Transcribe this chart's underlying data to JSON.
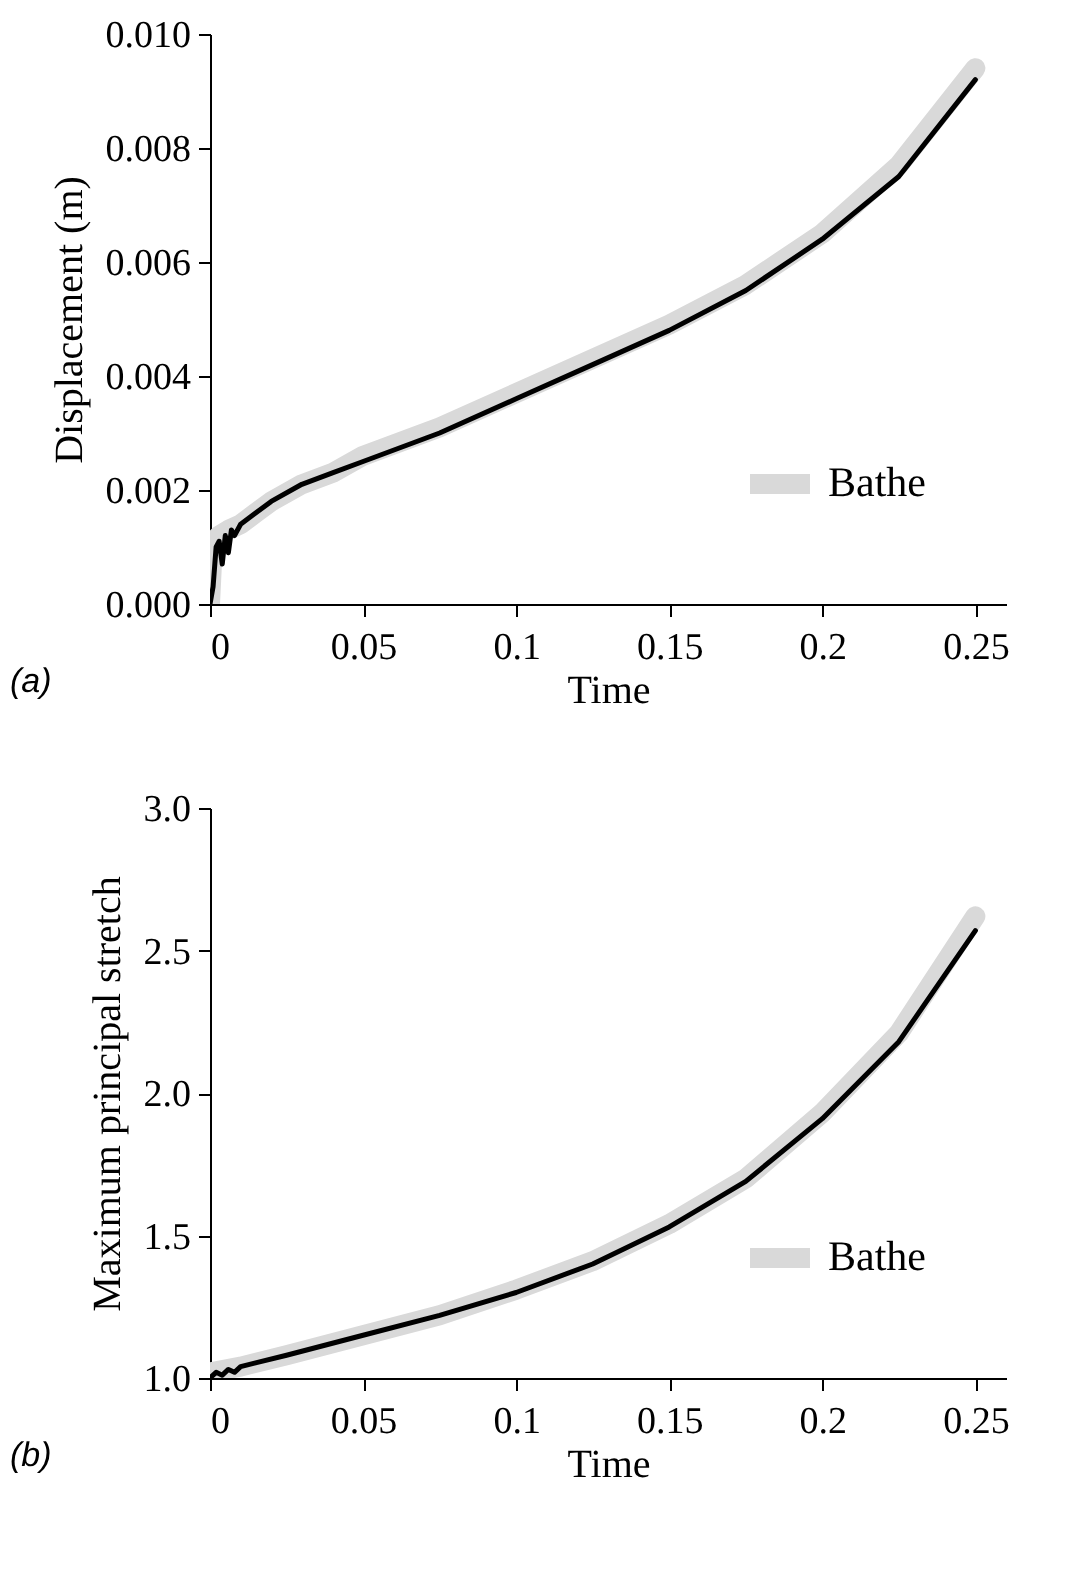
{
  "chart_data": [
    {
      "type": "line",
      "xlabel": "Time",
      "ylabel": "Displacement (m)",
      "annotations": [
        "(a)"
      ],
      "legend": "bottom right",
      "xlim": [
        0,
        0.26
      ],
      "xticks": [
        0,
        0.05,
        0.1,
        0.15,
        0.2,
        0.25
      ],
      "ylim": [
        0,
        0.01
      ],
      "yticks": [
        {
          "value": 0,
          "label": "0.000"
        },
        0.002,
        0.004,
        0.006,
        0.008,
        {
          "value": 0.01,
          "label": "0.010"
        }
      ],
      "series": [
        {
          "name": "Bathe",
          "color": "#d9d9d9",
          "x": [
            0,
            0.001,
            0.003,
            0.006,
            0.01,
            0.015,
            0.02,
            0.03,
            0.04,
            0.05,
            0.075,
            0.1,
            0.125,
            0.15,
            0.175,
            0.2,
            0.225,
            0.25
          ],
          "values": [
            0,
            0.0011,
            0.0012,
            0.0013,
            0.0014,
            0.0016,
            0.0018,
            0.0021,
            0.0023,
            0.0026,
            0.0031,
            0.0037,
            0.0043,
            0.0049,
            0.0056,
            0.0065,
            0.0077,
            0.0094
          ]
        },
        {
          "color": "#000000",
          "x": [
            0,
            0.001,
            0.002,
            0.003,
            0.004,
            0.005,
            0.006,
            0.007,
            0.008,
            0.01,
            0.015,
            0.02,
            0.03,
            0.04,
            0.05,
            0.075,
            0.1,
            0.125,
            0.15,
            0.175,
            0.2,
            0.225,
            0.25
          ],
          "values": [
            0,
            0.0003,
            0.001,
            0.0011,
            0.0007,
            0.0012,
            0.0009,
            0.0013,
            0.0012,
            0.0014,
            0.0016,
            0.0018,
            0.0021,
            0.0023,
            0.0025,
            0.003,
            0.0036,
            0.0042,
            0.0048,
            0.0055,
            0.0064,
            0.0075,
            0.0092
          ]
        }
      ]
    },
    {
      "type": "line",
      "xlabel": "Time",
      "ylabel": "Maximum principal stretch",
      "annotations": [
        "(b)"
      ],
      "legend": "bottom right",
      "xlim": [
        0,
        0.26
      ],
      "xticks": [
        0,
        0.05,
        0.1,
        0.15,
        0.2,
        0.25
      ],
      "ylim": [
        1,
        3
      ],
      "yticks": [
        {
          "value": 1,
          "label": "1.0"
        },
        1.5,
        {
          "value": 2,
          "label": "2.0"
        },
        2.5,
        {
          "value": 3,
          "label": "3.0"
        }
      ],
      "series": [
        {
          "name": "Bathe",
          "color": "#d9d9d9",
          "x": [
            0,
            0.01,
            0.025,
            0.05,
            0.075,
            0.1,
            0.125,
            0.15,
            0.175,
            0.2,
            0.225,
            0.25
          ],
          "values": [
            1.02,
            1.04,
            1.08,
            1.15,
            1.22,
            1.31,
            1.41,
            1.54,
            1.7,
            1.93,
            2.21,
            2.62
          ]
        },
        {
          "color": "#000000",
          "x": [
            0,
            0.002,
            0.004,
            0.006,
            0.008,
            0.01,
            0.025,
            0.05,
            0.075,
            0.1,
            0.125,
            0.15,
            0.175,
            0.2,
            0.225,
            0.25
          ],
          "values": [
            1,
            1.02,
            1.01,
            1.03,
            1.02,
            1.04,
            1.08,
            1.15,
            1.22,
            1.3,
            1.4,
            1.53,
            1.69,
            1.91,
            2.18,
            2.57
          ]
        }
      ]
    }
  ]
}
